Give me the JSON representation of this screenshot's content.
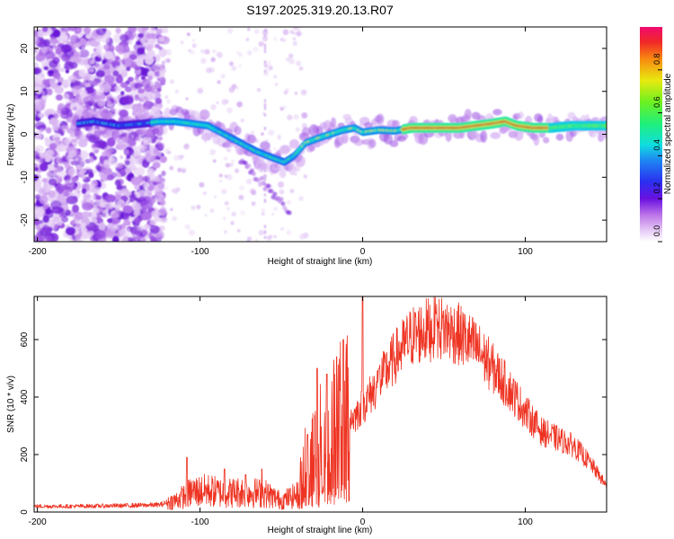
{
  "title": "S197.2025.319.20.13.R07",
  "chart_data": [
    {
      "type": "heatmap",
      "xlabel": "Height of straight line (km)",
      "ylabel": "Frequency (Hz)",
      "xlim": [
        -202,
        150
      ],
      "ylim": [
        -25,
        25
      ],
      "xticks": [
        -200,
        -100,
        0,
        100
      ],
      "yticks": [
        -20,
        -10,
        0,
        10,
        20
      ],
      "colorbar": {
        "label": "Normalized spectral amplitude",
        "range": [
          0,
          1
        ],
        "ticks": [
          "0.0",
          "0.2",
          "0.4",
          "0.6",
          "0.8"
        ]
      },
      "ridge": {
        "x": [
          -175,
          -165,
          -150,
          -135,
          -125,
          -115,
          -105,
          -95,
          -85,
          -75,
          -65,
          -55,
          -48,
          -42,
          -35,
          -28,
          -20,
          -12,
          -5,
          0,
          10,
          20,
          30,
          45,
          60,
          70,
          80,
          88,
          95,
          105,
          115,
          130,
          150
        ],
        "y": [
          2.5,
          3,
          2,
          2.5,
          3,
          3,
          2.5,
          2,
          0,
          -2,
          -4,
          -5.5,
          -6.5,
          -5,
          -2,
          -1,
          0,
          1,
          1.5,
          0.5,
          1,
          0.8,
          1.5,
          1.5,
          1.5,
          2,
          2.5,
          3,
          2,
          1.5,
          1.5,
          2,
          2
        ]
      },
      "branch": {
        "x": [
          -75,
          -65,
          -55,
          -45
        ],
        "y": [
          -6,
          -10,
          -14,
          -18
        ]
      }
    },
    {
      "type": "line",
      "xlabel": "Height of straight line (km)",
      "ylabel": "SNR (10 * v/v)",
      "xlim": [
        -202,
        150
      ],
      "ylim": [
        0,
        750
      ],
      "xticks": [
        -200,
        -100,
        0,
        100
      ],
      "yticks": [
        0,
        200,
        400,
        600
      ],
      "series": [
        {
          "name": "SNR",
          "color": "#ee3322",
          "envelope_x": [
            -202,
            -180,
            -150,
            -125,
            -115,
            -105,
            -95,
            -85,
            -75,
            -60,
            -50,
            -40,
            -35,
            -25,
            -15,
            -10,
            -5,
            0,
            10,
            20,
            30,
            40,
            50,
            60,
            70,
            80,
            90,
            100,
            110,
            120,
            130,
            140,
            150
          ],
          "envelope_y": [
            20,
            20,
            22,
            25,
            40,
            70,
            75,
            65,
            70,
            65,
            40,
            60,
            170,
            240,
            300,
            320,
            330,
            370,
            450,
            540,
            610,
            635,
            640,
            615,
            570,
            500,
            430,
            350,
            280,
            255,
            230,
            170,
            90
          ],
          "spikes_x": [
            -108,
            -85,
            -72,
            -62,
            -34,
            -28,
            -22,
            -16,
            -12,
            0,
            10,
            45
          ],
          "spikes_y": [
            190,
            150,
            130,
            150,
            270,
            500,
            480,
            540,
            600,
            750,
            500,
            690
          ]
        }
      ]
    }
  ]
}
